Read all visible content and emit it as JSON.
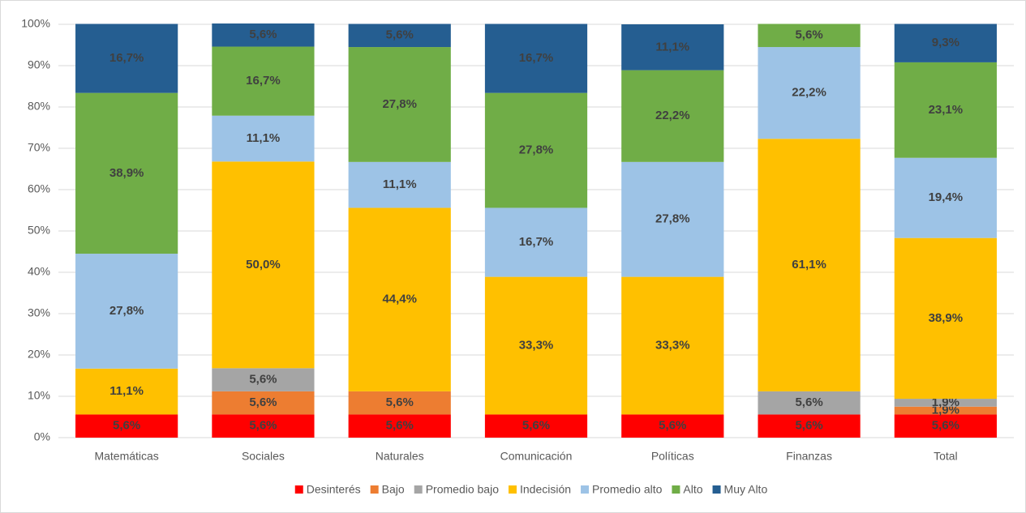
{
  "chart_data": {
    "type": "stacked_bar",
    "categories": [
      "Matemáticas",
      "Sociales",
      "Naturales",
      "Comunicación",
      "Políticas",
      "Finanzas",
      "Total"
    ],
    "series": [
      {
        "name": "Desinterés",
        "color": "#ff0000",
        "values": [
          5.6,
          5.6,
          5.6,
          5.6,
          5.6,
          5.6,
          5.6
        ],
        "value_labels": [
          "5,6%",
          "5,6%",
          "5,6%",
          "5,6%",
          "5,6%",
          "5,6%",
          "5,6%"
        ]
      },
      {
        "name": "Bajo",
        "color": "#ed7d31",
        "values": [
          null,
          5.6,
          5.6,
          null,
          null,
          null,
          1.9
        ],
        "value_labels": [
          null,
          "5,6%",
          "5,6%",
          null,
          null,
          null,
          "1,9%"
        ]
      },
      {
        "name": "Promedio bajo",
        "color": "#a5a5a5",
        "values": [
          null,
          5.6,
          null,
          null,
          null,
          5.6,
          1.9
        ],
        "value_labels": [
          null,
          "5,6%",
          null,
          null,
          null,
          "5,6%",
          "1,9%"
        ]
      },
      {
        "name": "Indecisión",
        "color": "#ffc000",
        "values": [
          11.1,
          50.0,
          44.4,
          33.3,
          33.3,
          61.1,
          38.9
        ],
        "value_labels": [
          "11,1%",
          "50,0%",
          "44,4%",
          "33,3%",
          "33,3%",
          "61,1%",
          "38,9%"
        ]
      },
      {
        "name": "Promedio alto",
        "color": "#9dc3e6",
        "values": [
          27.8,
          11.1,
          11.1,
          16.7,
          27.8,
          22.2,
          19.4
        ],
        "value_labels": [
          "27,8%",
          "11,1%",
          "11,1%",
          "16,7%",
          "27,8%",
          "22,2%",
          "19,4%"
        ]
      },
      {
        "name": "Alto",
        "color": "#70ad47",
        "values": [
          38.9,
          16.7,
          27.8,
          27.8,
          22.2,
          5.6,
          23.1
        ],
        "value_labels": [
          "38,9%",
          "16,7%",
          "27,8%",
          "27,8%",
          "22,2%",
          "5,6%",
          "23,1%"
        ]
      },
      {
        "name": "Muy Alto",
        "color": "#255e91",
        "values": [
          16.7,
          5.6,
          5.6,
          16.7,
          11.1,
          null,
          9.3
        ],
        "value_labels": [
          "16,7%",
          "5,6%",
          "5,6%",
          "16,7%",
          "11,1%",
          null,
          "9,3%"
        ]
      }
    ],
    "ylim": [
      0,
      100
    ],
    "yticks": [
      {
        "value": 0,
        "label": "0%"
      },
      {
        "value": 10,
        "label": "10%"
      },
      {
        "value": 20,
        "label": "20%"
      },
      {
        "value": 30,
        "label": "30%"
      },
      {
        "value": 40,
        "label": "40%"
      },
      {
        "value": 50,
        "label": "50%"
      },
      {
        "value": 60,
        "label": "60%"
      },
      {
        "value": 70,
        "label": "70%"
      },
      {
        "value": 80,
        "label": "80%"
      },
      {
        "value": 90,
        "label": "90%"
      },
      {
        "value": 100,
        "label": "100%"
      }
    ],
    "grid": true,
    "legend": "bottom"
  }
}
